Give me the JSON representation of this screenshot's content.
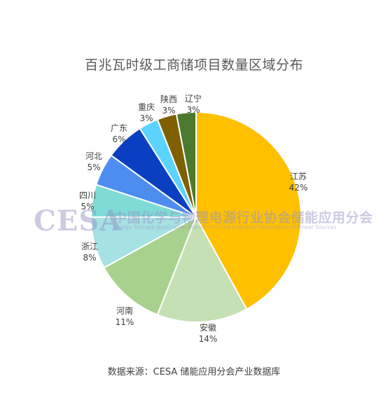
{
  "chart_data": {
    "type": "pie",
    "title": "百兆瓦时级工商储项目数量区域分布",
    "slices": [
      {
        "label": "江苏",
        "value": 42,
        "display": "42%",
        "color": "#ffc000"
      },
      {
        "label": "安徽",
        "value": 14,
        "display": "14%",
        "color": "#c5e0b4"
      },
      {
        "label": "河南",
        "value": 11,
        "display": "11%",
        "color": "#a9d18e"
      },
      {
        "label": "浙江",
        "value": 8,
        "display": "8%",
        "color": "#a6e1e3"
      },
      {
        "label": "四川",
        "value": 5,
        "display": "5%",
        "color": "#7fdbd5"
      },
      {
        "label": "河北",
        "value": 5,
        "display": "5%",
        "color": "#4d8df0"
      },
      {
        "label": "广东",
        "value": 6,
        "display": "6%",
        "color": "#0b3fc2"
      },
      {
        "label": "重庆",
        "value": 3,
        "display": "3%",
        "color": "#5bd3ff"
      },
      {
        "label": "陕西",
        "value": 3,
        "display": "3%",
        "color": "#7f6000"
      },
      {
        "label": "辽宁",
        "value": 3,
        "display": "3%",
        "color": "#4b7a2e"
      }
    ]
  },
  "watermark": {
    "logo": "CESA",
    "org_cn": "中国化学与物理电源行业协会储能应用分会",
    "org_en": "Energy Storage Application Branch of China Industrial Association of Power Sources"
  },
  "source": "数据来源：CESA 储能应用分会产业数据库"
}
